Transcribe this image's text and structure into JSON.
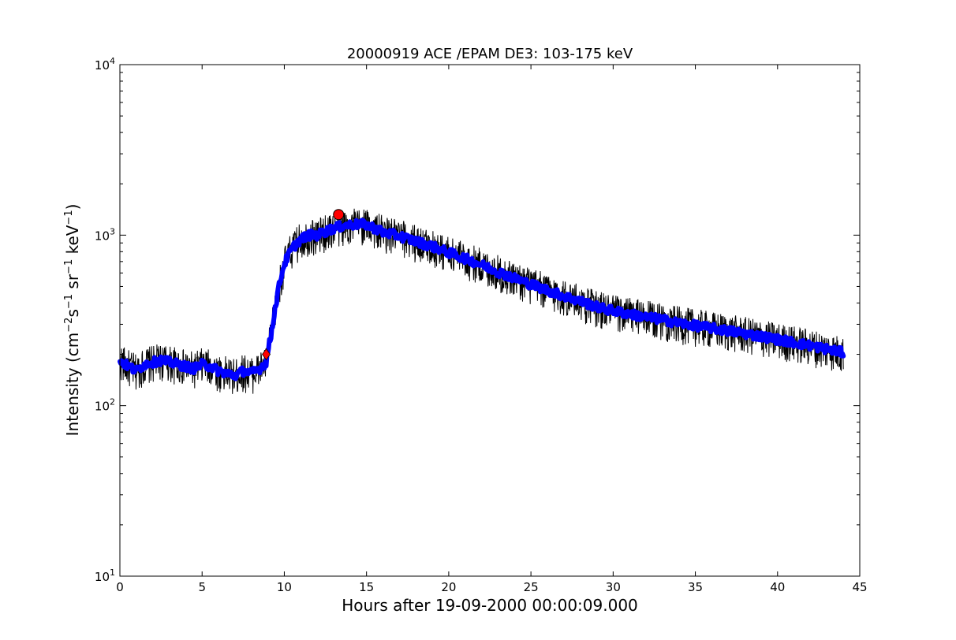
{
  "chart_data": {
    "type": "line",
    "title": "20000919 ACE /EPAM DE3: 103-175 keV",
    "xlabel": "Hours after 19-09-2000 00:00:09.000",
    "ylabel": {
      "main": "Intensity (cm",
      "exp1": "−2",
      "s": "s",
      "exp2": "−1",
      "sr": " sr",
      "exp3": "−1",
      "kev": " keV",
      "exp4": "−1",
      "close": ")"
    },
    "xlim": [
      0,
      45
    ],
    "ylim": [
      10,
      10000
    ],
    "yscale": "log",
    "x_ticks": [
      0,
      5,
      10,
      15,
      20,
      25,
      30,
      35,
      40,
      45
    ],
    "x_tick_labels": [
      "0",
      "5",
      "10",
      "15",
      "20",
      "25",
      "30",
      "35",
      "40",
      "45"
    ],
    "y_ticks": [
      {
        "value": 10,
        "base": "10",
        "exp": "1"
      },
      {
        "value": 100,
        "base": "10",
        "exp": "2"
      },
      {
        "value": 1000,
        "base": "10",
        "exp": "3"
      },
      {
        "value": 10000,
        "base": "10",
        "exp": "4"
      }
    ],
    "series": [
      {
        "style": "raw",
        "color": "#000000",
        "noise_fraction": 0.18,
        "x": [
          0,
          0.5,
          1,
          1.5,
          2,
          2.5,
          3,
          3.5,
          4,
          4.5,
          5,
          5.5,
          6,
          6.5,
          7,
          7.5,
          8,
          8.5,
          8.9,
          9.2,
          9.5,
          9.8,
          10,
          10.5,
          11,
          11.5,
          12,
          12.5,
          13,
          13.5,
          14,
          14.5,
          15,
          15.5,
          16,
          17,
          18,
          19,
          20,
          21,
          22,
          23,
          24,
          25,
          26,
          27,
          28,
          29,
          30,
          31,
          32,
          33,
          34,
          35,
          36,
          37,
          38,
          39,
          40,
          41,
          42,
          43,
          44
        ],
        "values": [
          185,
          170,
          160,
          175,
          180,
          185,
          180,
          175,
          170,
          165,
          175,
          170,
          160,
          155,
          150,
          160,
          155,
          165,
          180,
          260,
          400,
          570,
          680,
          840,
          950,
          1000,
          1000,
          1050,
          1100,
          1130,
          1150,
          1160,
          1150,
          1100,
          1040,
          990,
          920,
          860,
          790,
          730,
          670,
          610,
          560,
          515,
          475,
          440,
          410,
          380,
          360,
          345,
          330,
          320,
          305,
          295,
          285,
          275,
          265,
          255,
          245,
          235,
          225,
          215,
          205
        ]
      },
      {
        "style": "smoothed",
        "color": "#0000ff",
        "x": [
          0,
          0.5,
          1,
          1.5,
          2,
          2.5,
          3,
          3.5,
          4,
          4.5,
          5,
          5.5,
          6,
          6.5,
          7,
          7.5,
          8,
          8.5,
          8.9,
          9.2,
          9.5,
          9.8,
          10,
          10.5,
          11,
          11.5,
          12,
          12.5,
          13,
          13.5,
          14,
          14.5,
          15,
          15.5,
          16,
          17,
          18,
          19,
          20,
          21,
          22,
          23,
          24,
          25,
          26,
          27,
          28,
          29,
          30,
          31,
          32,
          33,
          34,
          35,
          36,
          37,
          38,
          39,
          40,
          41,
          42,
          43,
          44
        ],
        "values": [
          185,
          170,
          160,
          175,
          180,
          185,
          180,
          175,
          170,
          165,
          175,
          170,
          160,
          155,
          150,
          160,
          155,
          165,
          180,
          260,
          400,
          570,
          680,
          840,
          950,
          1000,
          1000,
          1050,
          1100,
          1130,
          1150,
          1160,
          1150,
          1100,
          1040,
          990,
          920,
          860,
          790,
          730,
          670,
          610,
          560,
          515,
          475,
          440,
          410,
          380,
          360,
          345,
          330,
          320,
          305,
          295,
          285,
          275,
          265,
          255,
          245,
          235,
          225,
          215,
          205
        ]
      }
    ],
    "markers": [
      {
        "name": "onset",
        "shape": "diamond",
        "color": "#ff0000",
        "x": 8.9,
        "y": 200
      },
      {
        "name": "peak",
        "shape": "circle",
        "color": "#ff0000",
        "x": 13.3,
        "y": 1320
      }
    ]
  }
}
